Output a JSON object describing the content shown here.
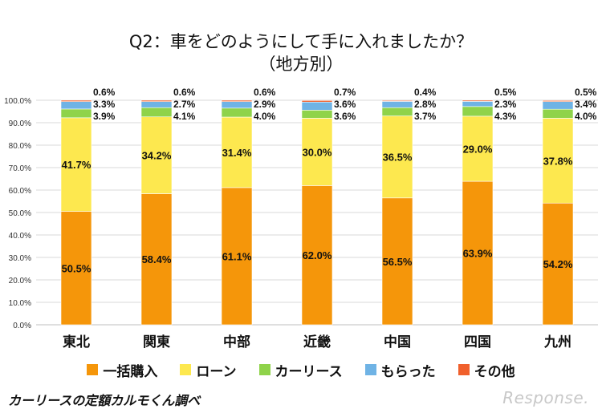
{
  "title_line1": "Q2：車をどのようにして手に入れましたか？",
  "title_line2": "（地方別）",
  "source": "カーリースの定額カルモくん調べ",
  "logo": "Response.",
  "colors": {
    "一括購入": "#f5960a",
    "ローン": "#fde84f",
    "カーリース": "#8fd34a",
    "もらった": "#6fb3e5",
    "その他": "#f0602c"
  },
  "chart_data": {
    "type": "bar",
    "stacked": true,
    "categories": [
      "東北",
      "関東",
      "中部",
      "近畿",
      "中国",
      "四国",
      "九州"
    ],
    "series": [
      {
        "name": "一括購入",
        "values": [
          50.5,
          58.4,
          61.1,
          62.0,
          56.5,
          63.9,
          54.2
        ]
      },
      {
        "name": "ローン",
        "values": [
          41.7,
          34.2,
          31.4,
          30.0,
          36.5,
          29.0,
          37.8
        ]
      },
      {
        "name": "カーリース",
        "values": [
          3.9,
          4.1,
          4.0,
          3.6,
          3.7,
          4.3,
          4.0
        ]
      },
      {
        "name": "もらった",
        "values": [
          3.3,
          2.7,
          2.9,
          3.6,
          2.8,
          2.3,
          3.4
        ]
      },
      {
        "name": "その他",
        "values": [
          0.6,
          0.6,
          0.6,
          0.7,
          0.4,
          0.5,
          0.5
        ]
      }
    ],
    "ylim": [
      0,
      100
    ],
    "yticks": [
      "0.0%",
      "10.0%",
      "20.0%",
      "30.0%",
      "40.0%",
      "50.0%",
      "60.0%",
      "70.0%",
      "80.0%",
      "90.0%",
      "100.0%"
    ],
    "value_labels": [
      [
        "50.5%",
        "58.4%",
        "61.1%",
        "62.0%",
        "56.5%",
        "63.9%",
        "54.2%"
      ],
      [
        "41.7%",
        "34.2%",
        "31.4%",
        "30.0%",
        "36.5%",
        "29.0%",
        "37.8%"
      ],
      [
        "3.9%",
        "4.1%",
        "4.0%",
        "3.6%",
        "3.7%",
        "4.3%",
        "4.0%"
      ],
      [
        "3.3%",
        "2.7%",
        "2.9%",
        "3.6%",
        "2.8%",
        "2.3%",
        "3.4%"
      ],
      [
        "0.6%",
        "0.6%",
        "0.6%",
        "0.7%",
        "0.4%",
        "0.5%",
        "0.5%"
      ]
    ],
    "grid": true,
    "legend": "bottom"
  }
}
